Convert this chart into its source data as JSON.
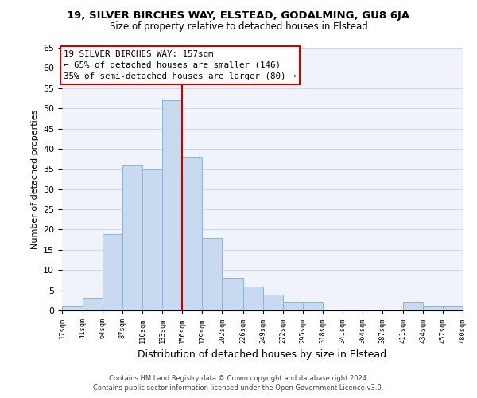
{
  "title1": "19, SILVER BIRCHES WAY, ELSTEAD, GODALMING, GU8 6JA",
  "title2": "Size of property relative to detached houses in Elstead",
  "xlabel": "Distribution of detached houses by size in Elstead",
  "ylabel": "Number of detached properties",
  "bar_color": "#c8daf0",
  "bar_edge_color": "#8ab4d8",
  "bins": [
    17,
    41,
    64,
    87,
    110,
    133,
    156,
    179,
    202,
    226,
    249,
    272,
    295,
    318,
    341,
    364,
    387,
    411,
    434,
    457,
    480
  ],
  "counts": [
    1,
    3,
    19,
    36,
    35,
    52,
    38,
    18,
    8,
    6,
    4,
    2,
    2,
    0,
    0,
    0,
    0,
    2,
    1,
    1
  ],
  "tick_labels": [
    "17sqm",
    "41sqm",
    "64sqm",
    "87sqm",
    "110sqm",
    "133sqm",
    "156sqm",
    "179sqm",
    "202sqm",
    "226sqm",
    "249sqm",
    "272sqm",
    "295sqm",
    "318sqm",
    "341sqm",
    "364sqm",
    "387sqm",
    "411sqm",
    "434sqm",
    "457sqm",
    "480sqm"
  ],
  "vline_x": 156,
  "vline_color": "#cc0000",
  "annotation_text_line1": "19 SILVER BIRCHES WAY: 157sqm",
  "annotation_text_line2": "← 65% of detached houses are smaller (146)",
  "annotation_text_line3": "35% of semi-detached houses are larger (80) →",
  "footer1": "Contains HM Land Registry data © Crown copyright and database right 2024.",
  "footer2": "Contains public sector information licensed under the Open Government Licence v3.0.",
  "ylim": [
    0,
    65
  ],
  "yticks": [
    0,
    5,
    10,
    15,
    20,
    25,
    30,
    35,
    40,
    45,
    50,
    55,
    60,
    65
  ],
  "bg_color": "#f0f4fa"
}
